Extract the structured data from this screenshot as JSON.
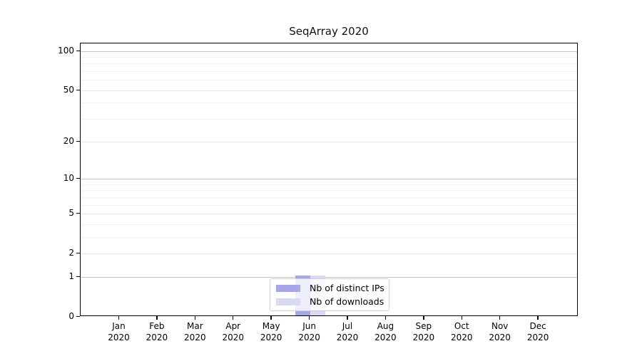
{
  "title": "SeqArray 2020",
  "chart_data": {
    "type": "bar",
    "title": "SeqArray 2020",
    "y_scale": "log1p",
    "grid": true,
    "categories": [
      "Jan",
      "Feb",
      "Mar",
      "Apr",
      "May",
      "Jun",
      "Jul",
      "Aug",
      "Sep",
      "Oct",
      "Nov",
      "Dec"
    ],
    "category_year": "2020",
    "series": [
      {
        "name": "Nb of distinct IPs",
        "color": "#a6a6e9",
        "values": [
          0,
          0,
          0,
          0,
          0,
          1,
          0,
          0,
          0,
          0,
          0,
          0
        ]
      },
      {
        "name": "Nb of downloads",
        "color": "#d9d9f4",
        "values": [
          0,
          0,
          0,
          0,
          0,
          1,
          0,
          0,
          0,
          0,
          0,
          0
        ]
      }
    ],
    "yticks": [
      0,
      1,
      2,
      5,
      10,
      20,
      50,
      100
    ],
    "y_major_gridlines": [
      1,
      10,
      100
    ],
    "y_mid_gridlines": [
      2,
      5,
      20,
      50
    ],
    "y_minor_gridlines": [
      3,
      4,
      6,
      7,
      8,
      9,
      30,
      40,
      60,
      70,
      80,
      90
    ],
    "ylim": [
      0,
      114
    ],
    "legend_position": "lower center",
    "legend_labels": [
      "Nb of distinct IPs",
      "Nb of downloads"
    ]
  },
  "colors": {
    "bar_distinct_ips": "#a6a6e9",
    "bar_downloads": "#d9d9f4",
    "grid_major": "#c4c4c4",
    "grid_mid": "#e6e6e6",
    "grid_minor": "#f2f2f2",
    "axis": "#000000",
    "legend_border": "#d0d0d0"
  }
}
